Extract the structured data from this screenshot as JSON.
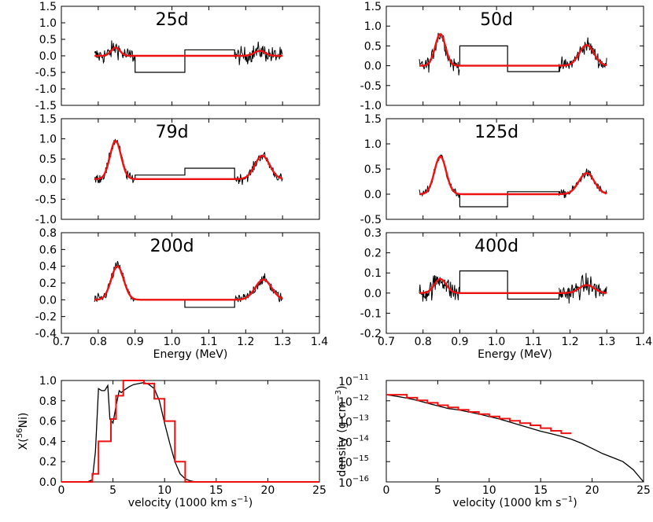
{
  "colors": {
    "model": "#ee1111",
    "data": "#000000",
    "axes": "#000000"
  },
  "chart_data": [
    {
      "type": "line",
      "id": "p25",
      "label": "25d",
      "xlim": [
        0.7,
        1.4
      ],
      "ylim": [
        -1.5,
        1.5
      ],
      "xticks": [],
      "yticks": [
        "1.5",
        "1.0",
        "0.5",
        "0.0",
        "-0.5",
        "-1.0",
        "-1.5"
      ],
      "lines": [
        {
          "x": [
            0.9,
            1.035
          ],
          "y": [
            -0.5,
            -0.5
          ]
        },
        {
          "x": [
            1.035,
            1.17
          ],
          "y": [
            0.18,
            0.18
          ]
        }
      ],
      "spectrum": {
        "x0": 0.79,
        "x1": 1.3,
        "gap": [
          0.9,
          1.17
        ],
        "noise": 0.25
      },
      "model": {
        "gaussians": [
          {
            "mu": 0.847,
            "amp": 0.25,
            "sigma": 0.012
          },
          {
            "mu": 1.238,
            "amp": 0.15,
            "sigma": 0.015
          }
        ]
      }
    },
    {
      "type": "line",
      "id": "p50",
      "label": "50d",
      "xlim": [
        0.7,
        1.4
      ],
      "ylim": [
        -1.0,
        1.5
      ],
      "xticks": [],
      "yticks": [
        "1.5",
        "1.0",
        "0.5",
        "0.0",
        "-0.5",
        "-1.0"
      ],
      "lines": [
        {
          "x": [
            0.9,
            1.03
          ],
          "y": [
            0.5,
            0.5
          ]
        },
        {
          "x": [
            1.03,
            1.17
          ],
          "y": [
            -0.15,
            -0.15
          ]
        }
      ],
      "spectrum": {
        "x0": 0.79,
        "x1": 1.3,
        "gap": [
          0.9,
          1.17
        ],
        "noise": 0.18
      },
      "model": {
        "gaussians": [
          {
            "mu": 0.847,
            "amp": 0.8,
            "sigma": 0.014
          },
          {
            "mu": 1.245,
            "amp": 0.52,
            "sigma": 0.02
          }
        ]
      }
    },
    {
      "type": "line",
      "id": "p79",
      "label": "79d",
      "xlim": [
        0.7,
        1.4
      ],
      "ylim": [
        -1.0,
        1.5
      ],
      "xticks": [],
      "yticks": [
        "1.5",
        "1.0",
        "0.5",
        "0.0",
        "-0.5",
        "-1.0"
      ],
      "lines": [
        {
          "x": [
            0.9,
            1.035
          ],
          "y": [
            0.1,
            0.1
          ]
        },
        {
          "x": [
            1.035,
            1.17
          ],
          "y": [
            0.27,
            0.27
          ]
        }
      ],
      "spectrum": {
        "x0": 0.79,
        "x1": 1.3,
        "gap": [
          0.9,
          1.17
        ],
        "noise": 0.12
      },
      "model": {
        "gaussians": [
          {
            "mu": 0.847,
            "amp": 0.95,
            "sigma": 0.015
          },
          {
            "mu": 1.245,
            "amp": 0.58,
            "sigma": 0.02
          }
        ]
      }
    },
    {
      "type": "line",
      "id": "p125",
      "label": "125d",
      "xlim": [
        0.7,
        1.4
      ],
      "ylim": [
        -0.5,
        1.5
      ],
      "xticks": [],
      "yticks": [
        "1.5",
        "1.0",
        "0.5",
        "0.0",
        "-0.5"
      ],
      "lines": [
        {
          "x": [
            0.9,
            1.03
          ],
          "y": [
            -0.25,
            -0.25
          ]
        },
        {
          "x": [
            1.03,
            1.17
          ],
          "y": [
            0.05,
            0.05
          ]
        }
      ],
      "spectrum": {
        "x0": 0.79,
        "x1": 1.3,
        "gap": [
          0.9,
          1.17
        ],
        "noise": 0.08
      },
      "model": {
        "gaussians": [
          {
            "mu": 0.847,
            "amp": 0.75,
            "sigma": 0.016
          },
          {
            "mu": 1.245,
            "amp": 0.42,
            "sigma": 0.021
          }
        ]
      }
    },
    {
      "type": "line",
      "id": "p200",
      "label": "200d",
      "xlim": [
        0.7,
        1.4
      ],
      "ylim": [
        -0.4,
        0.8
      ],
      "xticks": [
        "0.7",
        "0.8",
        "0.9",
        "1.0",
        "1.1",
        "1.2",
        "1.3",
        "1.4"
      ],
      "yticks": [
        "0.8",
        "0.6",
        "0.4",
        "0.2",
        "0.0",
        "-0.2",
        "-0.4"
      ],
      "xlabel": "Energy (MeV)",
      "lines": [
        {
          "x": [
            0.9,
            1.035
          ],
          "y": [
            0.0,
            0.0
          ]
        },
        {
          "x": [
            1.035,
            1.17
          ],
          "y": [
            -0.09,
            -0.09
          ]
        }
      ],
      "spectrum": {
        "x0": 0.79,
        "x1": 1.3,
        "gap": [
          0.9,
          1.17
        ],
        "noise": 0.06
      },
      "model": {
        "gaussians": [
          {
            "mu": 0.852,
            "amp": 0.4,
            "sigma": 0.017
          },
          {
            "mu": 1.248,
            "amp": 0.24,
            "sigma": 0.022
          }
        ]
      }
    },
    {
      "type": "line",
      "id": "p400",
      "label": "400d",
      "xlim": [
        0.7,
        1.4
      ],
      "ylim": [
        -0.2,
        0.3
      ],
      "xticks": [
        "0.7",
        "0.8",
        "0.9",
        "1.0",
        "1.1",
        "1.2",
        "1.3",
        "1.4"
      ],
      "yticks": [
        "0.3",
        "0.2",
        "0.1",
        "0.0",
        "-0.1",
        "-0.2"
      ],
      "xlabel": "Energy (MeV)",
      "lines": [
        {
          "x": [
            0.9,
            1.03
          ],
          "y": [
            0.11,
            0.11
          ]
        },
        {
          "x": [
            1.03,
            1.17
          ],
          "y": [
            -0.03,
            -0.03
          ]
        }
      ],
      "spectrum": {
        "x0": 0.79,
        "x1": 1.3,
        "gap": [
          0.9,
          1.17
        ],
        "noise": 0.05
      },
      "model": {
        "gaussians": [
          {
            "mu": 0.847,
            "amp": 0.07,
            "sigma": 0.016
          },
          {
            "mu": 1.245,
            "amp": 0.04,
            "sigma": 0.02
          }
        ]
      }
    },
    {
      "type": "line",
      "id": "pni",
      "xlim": [
        0,
        25
      ],
      "ylim": [
        0,
        1
      ],
      "xticks": [
        "0",
        "5",
        "10",
        "15",
        "20",
        "25"
      ],
      "yticks": [
        "1.0",
        "0.8",
        "0.6",
        "0.4",
        "0.2",
        "0.0"
      ],
      "xlabel": "velocity (1000 km s",
      "xlabel_sup": "−1",
      "xlabel_tail": ")",
      "ylabel": "X(",
      "ylabel_sup": "56",
      "ylabel_tail": "Ni)",
      "series": [
        {
          "name": "model",
          "color": "#000000",
          "x": [
            0,
            2.5,
            3.0,
            3.3,
            3.6,
            3.9,
            4.2,
            4.5,
            4.7,
            5.0,
            5.3,
            5.6,
            5.8,
            6.0,
            6.3,
            6.6,
            7.0,
            7.5,
            8.0,
            8.5,
            9.0,
            9.5,
            10.0,
            10.5,
            11.0,
            11.5,
            12.0,
            12.5,
            13.0,
            14.0,
            25
          ],
          "y": [
            0,
            0,
            0.02,
            0.3,
            0.92,
            0.9,
            0.9,
            0.95,
            0.62,
            0.58,
            0.75,
            0.9,
            0.88,
            0.9,
            0.92,
            0.94,
            0.96,
            0.97,
            0.98,
            0.96,
            0.92,
            0.8,
            0.58,
            0.38,
            0.2,
            0.08,
            0.03,
            0.01,
            0.0,
            0.0,
            0.0
          ]
        },
        {
          "name": "step",
          "color": "#ee1111",
          "step": true,
          "x": [
            0,
            3,
            3,
            3.6,
            3.6,
            4.8,
            4.8,
            5.3,
            5.3,
            6.0,
            6.0,
            8.0,
            8.0,
            9.0,
            9.0,
            10.0,
            10.0,
            11.0,
            11.0,
            12.0,
            12.0,
            25
          ],
          "y": [
            0,
            0,
            0.08,
            0.08,
            0.4,
            0.4,
            0.62,
            0.62,
            0.85,
            0.85,
            1.0,
            1.0,
            0.97,
            0.97,
            0.82,
            0.82,
            0.6,
            0.6,
            0.2,
            0.2,
            0,
            0
          ]
        }
      ]
    },
    {
      "type": "line",
      "id": "pden",
      "log_y": true,
      "xlim": [
        0,
        25
      ],
      "ylim": [
        -16,
        -11
      ],
      "xticks": [
        "0",
        "5",
        "10",
        "15",
        "20",
        "25"
      ],
      "yticks_base": "10",
      "yticks_exp": [
        "−11",
        "−12",
        "−13",
        "−14",
        "−15",
        "−16"
      ],
      "xlabel": "velocity (1000 km s",
      "xlabel_sup": "−1",
      "xlabel_tail": ")",
      "ylabel": "density (g cm",
      "ylabel_sup": "−3",
      "ylabel_tail": ")",
      "series": [
        {
          "name": "model",
          "color": "#000000",
          "x": [
            0,
            1,
            2,
            3,
            4,
            5,
            6,
            7,
            8,
            9,
            10,
            11,
            12,
            13,
            14,
            15,
            16,
            17,
            18,
            19,
            20,
            21,
            22,
            23,
            24,
            25
          ],
          "y": [
            -11.7,
            -11.78,
            -11.87,
            -11.98,
            -12.12,
            -12.25,
            -12.38,
            -12.45,
            -12.55,
            -12.65,
            -12.78,
            -12.9,
            -13.05,
            -13.2,
            -13.35,
            -13.5,
            -13.62,
            -13.75,
            -13.9,
            -14.1,
            -14.35,
            -14.6,
            -14.8,
            -15.0,
            -15.4,
            -16.0
          ]
        },
        {
          "name": "step",
          "color": "#ee1111",
          "step": true,
          "x": [
            0,
            2,
            2,
            3,
            3,
            4,
            4,
            5,
            5,
            6,
            6,
            7,
            7,
            8,
            8,
            9,
            9,
            10,
            10,
            11,
            11,
            12,
            12,
            13,
            13,
            14,
            14,
            15,
            15,
            16,
            16,
            17,
            17,
            18
          ],
          "y": [
            -11.7,
            -11.7,
            -11.85,
            -11.85,
            -11.98,
            -11.98,
            -12.1,
            -12.1,
            -12.22,
            -12.22,
            -12.33,
            -12.33,
            -12.44,
            -12.44,
            -12.55,
            -12.55,
            -12.66,
            -12.66,
            -12.77,
            -12.77,
            -12.88,
            -12.88,
            -12.99,
            -12.99,
            -13.1,
            -13.1,
            -13.21,
            -13.21,
            -13.35,
            -13.35,
            -13.48,
            -13.48,
            -13.6,
            -13.6
          ]
        }
      ]
    }
  ]
}
